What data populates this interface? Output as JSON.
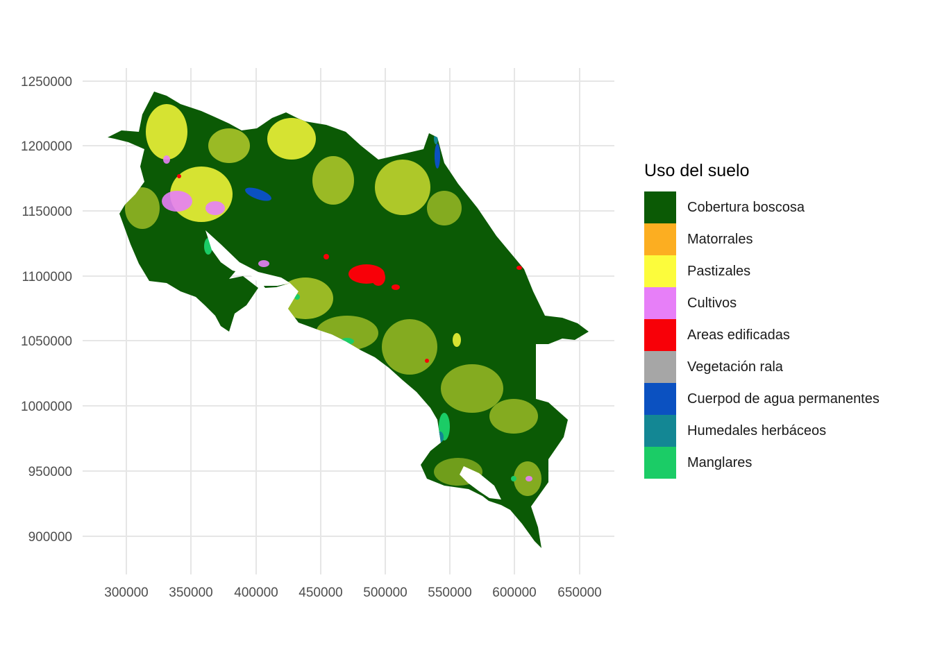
{
  "map": {
    "x_axis": {
      "ticks": [
        "300000",
        "350000",
        "400000",
        "450000",
        "500000",
        "550000",
        "600000",
        "650000"
      ]
    },
    "y_axis": {
      "ticks": [
        "900000",
        "950000",
        "1000000",
        "1050000",
        "1100000",
        "1150000",
        "1200000",
        "1250000"
      ]
    },
    "grid": true
  },
  "legend": {
    "title": "Uso del suelo",
    "items": [
      {
        "label": "Cobertura boscosa",
        "color": "#0b5a05"
      },
      {
        "label": "Matorrales",
        "color": "#fcae21"
      },
      {
        "label": "Pastizales",
        "color": "#fcfc3c"
      },
      {
        "label": "Cultivos",
        "color": "#e77ff8"
      },
      {
        "label": "Areas edificadas",
        "color": "#f80008"
      },
      {
        "label": "Vegetación rala",
        "color": "#a6a6a6"
      },
      {
        "label": "Cuerpod de agua permanentes",
        "color": "#0b51c1"
      },
      {
        "label": "Humedales herbáceos",
        "color": "#138794"
      },
      {
        "label": "Manglares",
        "color": "#1bcc66"
      }
    ]
  }
}
